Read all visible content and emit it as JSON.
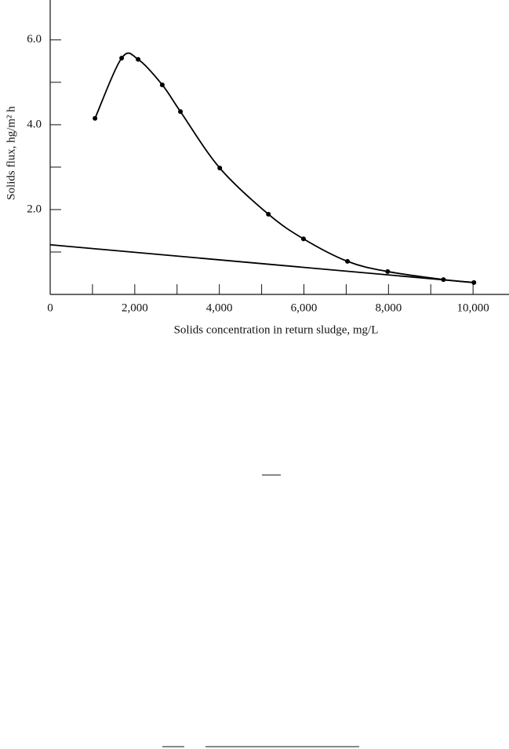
{
  "chart_data": {
    "type": "line",
    "y_label": "Solids flux, hg/m² h",
    "x_label": "Solids concentration in return sludge, mg/L",
    "xlim": [
      0,
      10850
    ],
    "ylim": [
      0,
      6.94
    ],
    "xticks": [
      0,
      {
        "value": 2000,
        "label": "2,000"
      },
      {
        "value": 4000,
        "label": "4,000"
      },
      {
        "value": 6000,
        "label": "6,000"
      },
      {
        "value": 8000,
        "label": "8,000"
      },
      {
        "value": 10000,
        "label": "10,000"
      }
    ],
    "xminorticks": [
      1000,
      3000,
      5000,
      7000,
      9000
    ],
    "yticks": [
      {
        "value": 2,
        "label": "2.0"
      },
      {
        "value": 4,
        "label": "4.0"
      },
      {
        "value": 6,
        "label": "6.0"
      }
    ],
    "yminorticks": [
      1,
      3,
      5
    ],
    "series": [
      {
        "color": "#000000",
        "markers": true,
        "smooth": true,
        "x": [
          1060,
          1690,
          2080,
          2650,
          3080,
          4010,
          5160,
          5990,
          7030,
          7980,
          9300,
          10020
        ],
        "values": [
          4.15,
          5.57,
          5.54,
          4.94,
          4.31,
          2.98,
          1.89,
          1.31,
          0.78,
          0.54,
          0.35,
          0.28
        ]
      },
      {
        "color": "#000000",
        "markers": false,
        "smooth": false,
        "x": [
          0,
          10020
        ],
        "values": [
          1.17,
          0.28
        ]
      }
    ]
  }
}
